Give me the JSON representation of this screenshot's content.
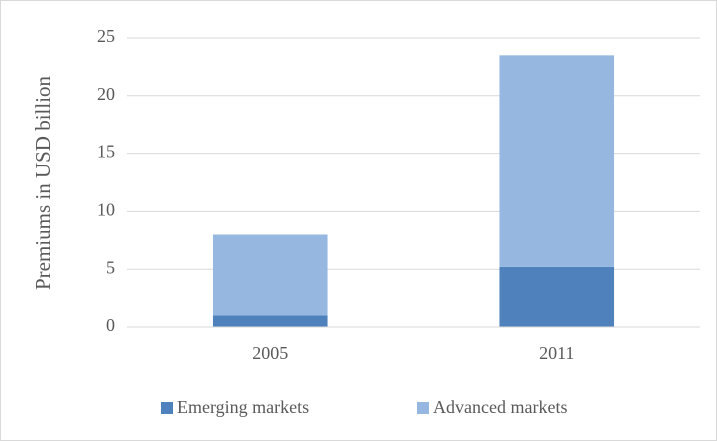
{
  "chart_data": {
    "type": "stacked_bar",
    "y_label": "Premiums in  USD billion",
    "categories": [
      "2005",
      "2011"
    ],
    "series": [
      {
        "name": "Emerging markets",
        "color": "#4f81bd",
        "values": [
          1.0,
          5.2
        ]
      },
      {
        "name": "Advanced markets",
        "color": "#95b7e0",
        "values": [
          7.0,
          18.3
        ]
      }
    ],
    "ylim": [
      0,
      25
    ],
    "yticks": [
      0,
      5,
      10,
      15,
      20,
      25
    ],
    "grid": true,
    "legend": "bottom"
  }
}
